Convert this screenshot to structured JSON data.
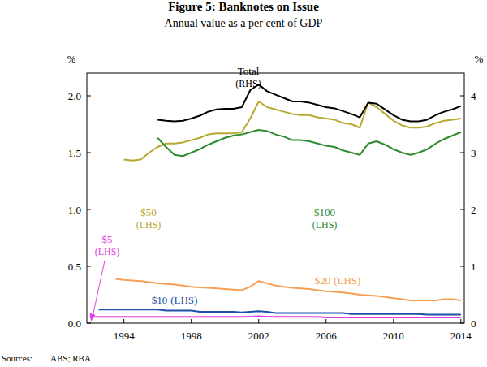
{
  "chart_data": {
    "type": "line",
    "title": "Figure 5: Banknotes on Issue",
    "subtitle": "Annual value as a per cent of GDP",
    "ylabel": "%",
    "y2label": "%",
    "source_label": "Sources:",
    "source": "ABS; RBA",
    "grid": false,
    "x": [
      1992,
      1992.5,
      1993,
      1993.5,
      1994,
      1994.5,
      1995,
      1995.5,
      1996,
      1996.5,
      1997,
      1997.5,
      1998,
      1998.5,
      1999,
      1999.5,
      2000,
      2000.5,
      2001,
      2001.5,
      2002,
      2002.5,
      2003,
      2003.5,
      2004,
      2004.5,
      2005,
      2005.5,
      2006,
      2006.5,
      2007,
      2007.5,
      2008,
      2008.5,
      2009,
      2009.5,
      2010,
      2010.5,
      2011,
      2011.5,
      2012,
      2012.5,
      2013,
      2013.5,
      2014
    ],
    "xlim": [
      1991.8,
      2014.2
    ],
    "xticks": [
      1994,
      1998,
      2002,
      2006,
      2010,
      2014
    ],
    "ylim": [
      0,
      2.2
    ],
    "yticks": [
      {
        "value": 0,
        "label": "0.0"
      },
      0.5,
      {
        "value": 1,
        "label": "1.0"
      },
      1.5,
      {
        "value": 2,
        "label": "2.0"
      }
    ],
    "y2lim": [
      0,
      4.4
    ],
    "y2ticks": [
      0,
      1,
      2,
      3,
      4
    ],
    "series": [
      {
        "name": "$5",
        "note": "(LHS)",
        "color": "#e040e0",
        "values": [
          0.055,
          0.055,
          0.055,
          0.055,
          0.055,
          0.055,
          0.055,
          0.055,
          0.055,
          0.055,
          0.055,
          0.055,
          0.055,
          0.055,
          0.055,
          0.055,
          0.055,
          0.055,
          0.055,
          0.058,
          0.06,
          0.058,
          0.055,
          0.055,
          0.055,
          0.055,
          0.055,
          0.055,
          0.05,
          0.05,
          0.05,
          0.05,
          0.05,
          0.05,
          0.05,
          0.05,
          0.05,
          0.05,
          0.05,
          0.05,
          0.05,
          0.05,
          0.05,
          0.05,
          0.05
        ]
      },
      {
        "name": "$10",
        "note": "(LHS)",
        "color": "#1f4fa8",
        "values": [
          null,
          0.12,
          0.12,
          0.12,
          0.12,
          0.12,
          0.12,
          0.12,
          0.12,
          0.11,
          0.11,
          0.11,
          0.11,
          0.1,
          0.1,
          0.1,
          0.1,
          0.1,
          0.095,
          0.1,
          0.105,
          0.1,
          0.09,
          0.09,
          0.09,
          0.09,
          0.09,
          0.09,
          0.09,
          0.09,
          0.09,
          0.08,
          0.08,
          0.08,
          0.08,
          0.08,
          0.08,
          0.08,
          0.08,
          0.08,
          0.075,
          0.075,
          0.075,
          0.075,
          0.075
        ]
      },
      {
        "name": "$20",
        "note": "(LHS)",
        "color": "#f5a055",
        "values": [
          null,
          null,
          null,
          0.39,
          0.38,
          0.375,
          0.37,
          0.36,
          0.35,
          0.345,
          0.34,
          0.33,
          0.32,
          0.315,
          0.31,
          0.305,
          0.3,
          0.295,
          0.29,
          0.32,
          0.37,
          0.35,
          0.33,
          0.32,
          0.31,
          0.305,
          0.3,
          0.29,
          0.28,
          0.275,
          0.27,
          0.26,
          0.25,
          0.245,
          0.24,
          0.23,
          0.22,
          0.21,
          0.2,
          0.2,
          0.2,
          0.2,
          0.21,
          0.21,
          0.2
        ]
      },
      {
        "name": "$50",
        "note": "(LHS)",
        "color": "#b8a830",
        "values": [
          null,
          null,
          null,
          null,
          1.44,
          1.43,
          1.44,
          1.5,
          1.55,
          1.58,
          1.58,
          1.59,
          1.61,
          1.63,
          1.66,
          1.67,
          1.67,
          1.67,
          1.68,
          1.8,
          1.95,
          1.9,
          1.88,
          1.86,
          1.84,
          1.83,
          1.83,
          1.81,
          1.8,
          1.79,
          1.76,
          1.75,
          1.72,
          1.94,
          1.9,
          1.84,
          1.78,
          1.74,
          1.72,
          1.72,
          1.73,
          1.76,
          1.78,
          1.79,
          1.8
        ]
      },
      {
        "name": "$100",
        "note": "(LHS)",
        "color": "#2e8b2e",
        "values": [
          null,
          null,
          null,
          null,
          null,
          null,
          null,
          null,
          1.63,
          1.55,
          1.48,
          1.47,
          1.5,
          1.53,
          1.57,
          1.6,
          1.63,
          1.65,
          1.66,
          1.68,
          1.7,
          1.69,
          1.66,
          1.64,
          1.61,
          1.61,
          1.6,
          1.58,
          1.56,
          1.55,
          1.52,
          1.5,
          1.48,
          1.58,
          1.6,
          1.57,
          1.53,
          1.5,
          1.48,
          1.5,
          1.53,
          1.58,
          1.62,
          1.65,
          1.68
        ]
      },
      {
        "name": "Total",
        "note": "(RHS)",
        "color": "#000000",
        "axis": "y2",
        "values": [
          null,
          null,
          null,
          null,
          null,
          null,
          null,
          null,
          3.58,
          3.56,
          3.55,
          3.56,
          3.6,
          3.65,
          3.72,
          3.76,
          3.77,
          3.77,
          3.8,
          4.1,
          4.2,
          4.08,
          4.02,
          3.96,
          3.9,
          3.9,
          3.88,
          3.84,
          3.8,
          3.78,
          3.73,
          3.68,
          3.62,
          3.88,
          3.86,
          3.76,
          3.66,
          3.58,
          3.55,
          3.55,
          3.58,
          3.66,
          3.72,
          3.76,
          3.82
        ]
      }
    ]
  }
}
